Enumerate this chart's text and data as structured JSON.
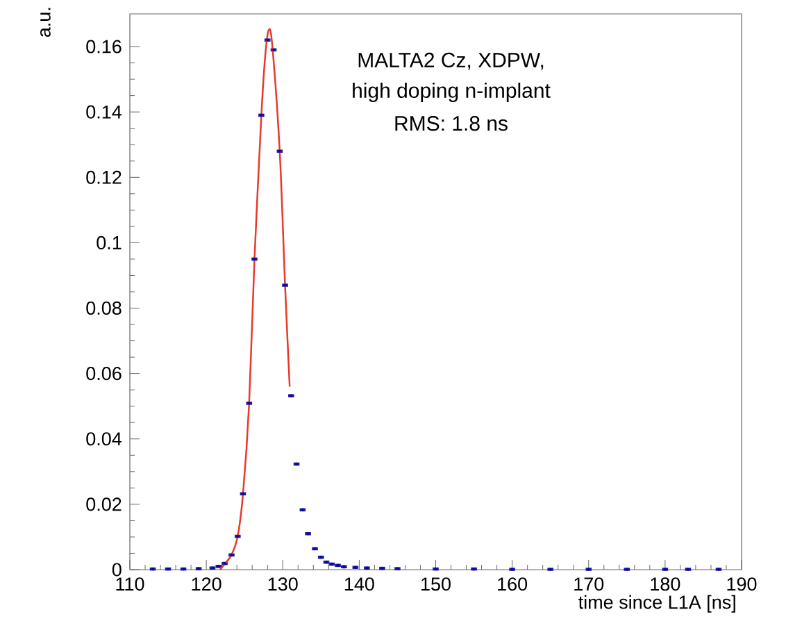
{
  "chart_data": {
    "type": "scatter",
    "xlabel": "time since L1A [ns]",
    "ylabel": "a.u.",
    "annotations": [
      "MALTA2 Cz, XDPW,",
      "high doping n-implant",
      "RMS: 1.8 ns"
    ],
    "xlim": [
      110,
      190
    ],
    "ylim": [
      0,
      0.17
    ],
    "xticks": [
      110,
      120,
      130,
      140,
      150,
      160,
      170,
      180,
      190
    ],
    "yticks": [
      0,
      0.02,
      0.04,
      0.06,
      0.08,
      0.1,
      0.12,
      0.14,
      0.16
    ],
    "series": [
      {
        "color": "#1c1c8a",
        "x": [
          113,
          115,
          117,
          119,
          120.8,
          121.6,
          122.4,
          123.3,
          124.1,
          124.8,
          125.6,
          126.3,
          127.2,
          128.0,
          128.8,
          129.6,
          130.3,
          131.1,
          131.8,
          132.6,
          133.3,
          134.2,
          135.0,
          135.7,
          136.4,
          137.2,
          138.0,
          139.5,
          141.0,
          143.0,
          145.0,
          150.0,
          155.0,
          160.0,
          165.0,
          170.0,
          175.0,
          180.0,
          183.0,
          187.0
        ],
        "values": [
          0.0002,
          0.0002,
          0.0002,
          0.0003,
          0.0005,
          0.001,
          0.0019,
          0.0045,
          0.0102,
          0.0232,
          0.0509,
          0.095,
          0.139,
          0.162,
          0.159,
          0.128,
          0.087,
          0.0532,
          0.0323,
          0.0183,
          0.011,
          0.0064,
          0.0038,
          0.0023,
          0.0017,
          0.0013,
          0.0009,
          0.0007,
          0.0005,
          0.0004,
          0.0003,
          0.0002,
          0.0002,
          0.0001,
          0.0001,
          0.0001,
          0.0001,
          0.0001,
          0.0001,
          0.0001
        ],
        "xerrors": [
          0.39,
          0.39,
          0.39,
          0.39,
          0.39,
          0.39,
          0.39,
          0.39,
          0.39,
          0.39,
          0.39,
          0.39,
          0.39,
          0.39,
          0.39,
          0.39,
          0.39,
          0.39,
          0.39,
          0.39,
          0.39,
          0.39,
          0.39,
          0.39,
          0.39,
          0.39,
          0.39,
          0.39,
          0.39,
          0.39,
          0.39,
          0.39,
          0.39,
          0.39,
          0.39,
          0.39,
          0.39,
          0.39,
          0.39,
          0.39
        ]
      },
      {
        "type": "line",
        "color": "#e8392a",
        "line_style": "solid",
        "x": [
          121.8,
          122.5,
          123.3,
          124.1,
          124.8,
          125.6,
          126.3,
          127.2,
          127.7,
          128.15,
          128.6,
          129.6,
          130.3,
          130.9
        ],
        "values": [
          0.0,
          0.002,
          0.0045,
          0.0102,
          0.0232,
          0.0509,
          0.095,
          0.139,
          0.157,
          0.165,
          0.161,
          0.128,
          0.087,
          0.056
        ]
      }
    ]
  }
}
